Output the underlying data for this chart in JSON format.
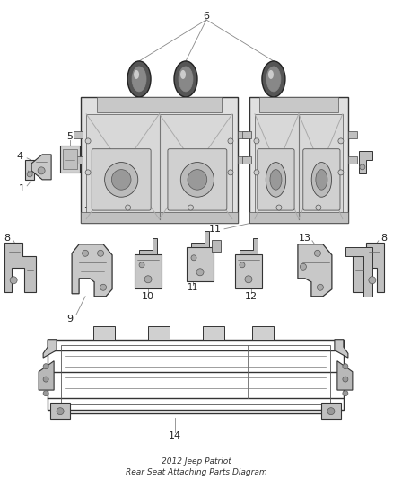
{
  "background_color": "#ffffff",
  "fig_width": 4.38,
  "fig_height": 5.33,
  "dpi": 100,
  "line_color": "#333333",
  "thin_line": "#555555",
  "label_color": "#222222",
  "label_fontsize": 7.5,
  "leader_color": "#888888",
  "parts_gray": "#b0b0b0",
  "parts_dark": "#444444",
  "parts_light": "#d8d8d8",
  "hatch_color": "#999999"
}
